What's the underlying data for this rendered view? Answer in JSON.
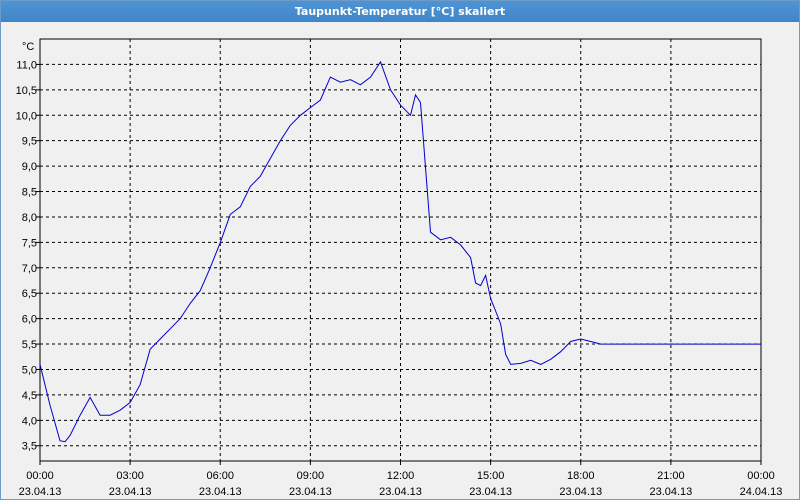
{
  "window": {
    "title": "Taupunkt-Temperatur [°C] skaliert"
  },
  "chart_data": {
    "type": "line",
    "title": "Taupunkt-Temperatur [°C] skaliert",
    "ylabel": "°C",
    "ylim": [
      3.2,
      11.5
    ],
    "xlim": [
      0,
      24
    ],
    "grid": true,
    "y_ticks": [
      "3,5",
      "4,0",
      "4,5",
      "5,0",
      "5,5",
      "6,0",
      "6,5",
      "7,0",
      "7,5",
      "8,0",
      "8,5",
      "9,0",
      "9,5",
      "10,0",
      "10,5",
      "11,0"
    ],
    "x_ticks": [
      {
        "time": "00:00",
        "date": "23.04.13"
      },
      {
        "time": "03:00",
        "date": "23.04.13"
      },
      {
        "time": "06:00",
        "date": "23.04.13"
      },
      {
        "time": "09:00",
        "date": "23.04.13"
      },
      {
        "time": "12:00",
        "date": "23.04.13"
      },
      {
        "time": "15:00",
        "date": "23.04.13"
      },
      {
        "time": "18:00",
        "date": "23.04.13"
      },
      {
        "time": "21:00",
        "date": "23.04.13"
      },
      {
        "time": "00:00",
        "date": "24.04.13"
      }
    ],
    "series": [
      {
        "color": "#0000cc",
        "x": [
          "00:00",
          "00:20",
          "00:40",
          "00:50",
          "01:00",
          "01:20",
          "01:40",
          "02:00",
          "02:20",
          "02:40",
          "03:00",
          "03:20",
          "03:40",
          "04:00",
          "04:20",
          "04:40",
          "05:00",
          "05:20",
          "05:40",
          "06:00",
          "06:20",
          "06:40",
          "07:00",
          "07:20",
          "07:40",
          "08:00",
          "08:20",
          "08:40",
          "09:00",
          "09:20",
          "09:40",
          "10:00",
          "10:20",
          "10:40",
          "11:00",
          "11:20",
          "11:40",
          "12:00",
          "12:20",
          "12:30",
          "12:40",
          "13:00",
          "13:20",
          "13:40",
          "14:00",
          "14:20",
          "14:30",
          "14:40",
          "14:50",
          "15:00",
          "15:10",
          "15:20",
          "15:30",
          "15:40",
          "16:00",
          "16:20",
          "16:40",
          "17:00",
          "17:20",
          "17:40",
          "18:00",
          "18:20",
          "18:40",
          "19:00",
          "19:20",
          "19:40",
          "20:00",
          "20:20",
          "20:40",
          "20:50",
          "21:00",
          "21:20",
          "21:40",
          "22:00",
          "22:20",
          "22:40",
          "23:00",
          "23:20",
          "23:40",
          "24:00"
        ],
        "y": [
          5.1,
          4.3,
          3.6,
          3.58,
          3.7,
          4.1,
          4.45,
          4.1,
          4.1,
          4.2,
          4.35,
          4.7,
          5.4,
          5.6,
          5.8,
          6.0,
          6.3,
          6.55,
          7.0,
          7.5,
          8.05,
          8.2,
          8.6,
          8.8,
          9.15,
          9.5,
          9.8,
          10.0,
          10.15,
          10.3,
          10.75,
          10.65,
          10.7,
          10.6,
          10.75,
          11.05,
          10.5,
          10.2,
          10.0,
          10.4,
          10.25,
          7.7,
          7.55,
          7.6,
          7.45,
          7.2,
          6.7,
          6.65,
          6.85,
          6.4,
          6.15,
          5.9,
          5.3,
          5.1,
          5.12,
          5.18,
          5.1,
          5.2,
          5.35,
          5.55,
          5.6,
          5.55,
          5.5,
          5.5,
          5.5,
          5.5,
          5.5,
          5.5,
          5.5,
          5.5,
          5.5,
          5.5,
          5.5,
          5.5,
          5.5,
          5.5,
          5.5,
          5.5,
          5.5,
          5.5
        ]
      }
    ]
  }
}
